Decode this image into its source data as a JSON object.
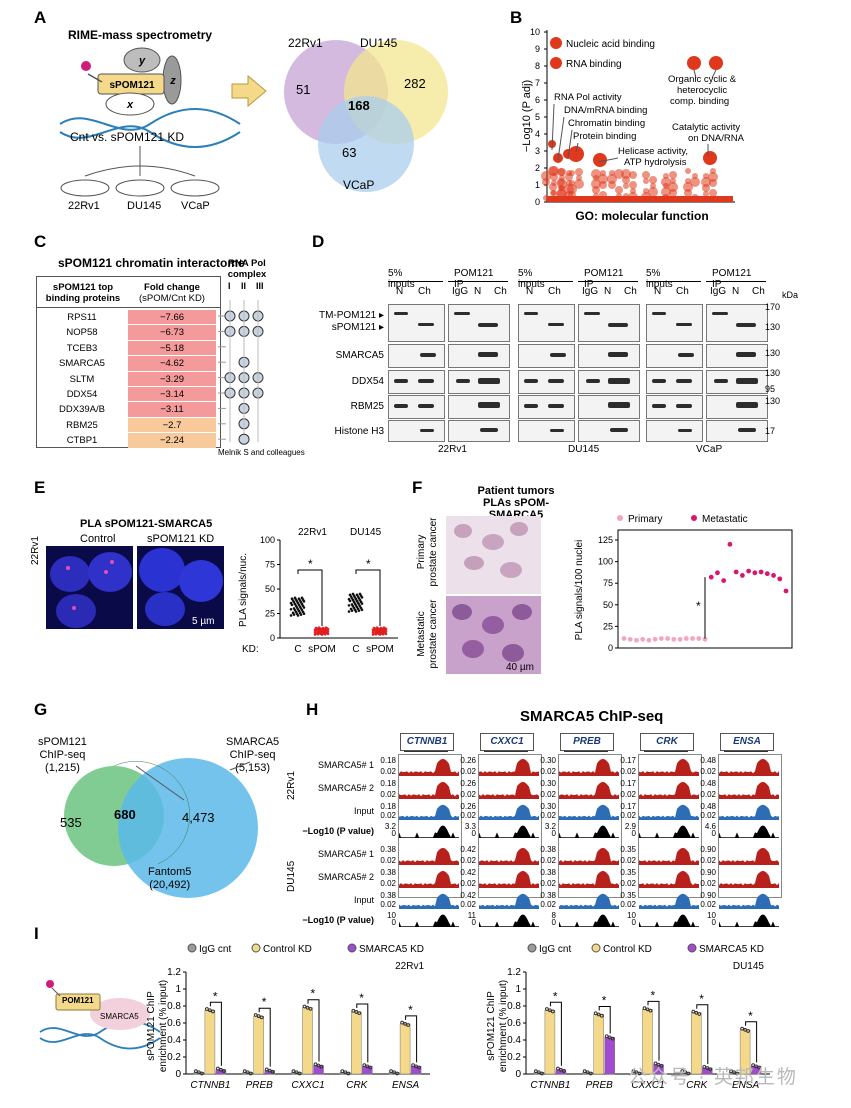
{
  "panels": {
    "A": {
      "label": "A",
      "title": "RIME-mass spectrometry",
      "protein_labels": {
        "y": "y",
        "main": "sPOM121",
        "z": "z",
        "x": "x"
      },
      "comparison": "Cnt vs. sPOM121 KD",
      "dishes": [
        "22Rv1",
        "DU145",
        "VCaP"
      ],
      "venn": {
        "sets": [
          "22Rv1",
          "DU145",
          "VCaP"
        ],
        "only_22rv1": "51",
        "only_du145": "282",
        "shared": "168",
        "only_vcap": "63"
      }
    },
    "B": {
      "label": "B",
      "ylabel": "−Log10 (P adj)",
      "xlabel": "GO: molecular function",
      "yticks": [
        "0",
        "1",
        "2",
        "3",
        "4",
        "5",
        "6",
        "7",
        "8",
        "9",
        "10"
      ],
      "legend": [
        "Nucleic acid binding",
        "RNA binding"
      ],
      "annotations": [
        "RNA Pol activity",
        "DNA/mRNA binding",
        "Chromatin binding",
        "Protein binding",
        "Helicase activity,",
        "ATP hydrolysis",
        "Organic cyclic &",
        "heterocyclic",
        "comp. binding",
        "Catalytic activity",
        "on DNA/RNA"
      ]
    },
    "C": {
      "label": "C",
      "title": "sPOM121 chromatin interactome",
      "col1_header": [
        "sPOM121 top",
        "binding proteins"
      ],
      "col2_header": [
        "Fold change",
        "(sPOM/Cnt KD)"
      ],
      "rnapol_header": [
        "RNA Pol",
        "complex"
      ],
      "rnapol_cols": [
        "I",
        "II",
        "III"
      ],
      "credit": "Melnik S and colleagues",
      "rows": [
        {
          "protein": "RPS11",
          "fold": "−7.66",
          "pol": [
            1,
            1,
            1
          ]
        },
        {
          "protein": "NOP58",
          "fold": "−6.73",
          "pol": [
            1,
            1,
            1
          ]
        },
        {
          "protein": "TCEB3",
          "fold": "−5.18",
          "pol": [
            0,
            0,
            0
          ]
        },
        {
          "protein": "SMARCA5",
          "fold": "−4.62",
          "pol": [
            0,
            1,
            0
          ]
        },
        {
          "protein": "SLTM",
          "fold": "−3.29",
          "pol": [
            1,
            1,
            1
          ]
        },
        {
          "protein": "DDX54",
          "fold": "−3.14",
          "pol": [
            1,
            1,
            1
          ]
        },
        {
          "protein": "DDX39A/B",
          "fold": "−3.11",
          "pol": [
            0,
            1,
            0
          ]
        },
        {
          "protein": "RBM25",
          "fold": "−2.7",
          "pol": [
            0,
            1,
            0
          ]
        },
        {
          "protein": "CTBP1",
          "fold": "−2.24",
          "pol": [
            0,
            1,
            0
          ]
        }
      ]
    },
    "D": {
      "label": "D",
      "group_headers": [
        "5% inputs",
        "POM121 IP"
      ],
      "lane_labels": [
        "N",
        "Ch",
        "IgG",
        "N",
        "Ch"
      ],
      "rows": [
        "TM-POM121 ▸",
        "sPOM121 ▸",
        "SMARCA5",
        "DDX54",
        "RBM25",
        "Histone H3"
      ],
      "kda_label": "kDa",
      "kda": [
        "170",
        "130",
        "130",
        "130",
        "95",
        "130",
        "17"
      ],
      "cells": [
        "22Rv1",
        "DU145",
        "VCaP"
      ]
    },
    "E": {
      "label": "E",
      "title": "PLA sPOM121-SMARCA5",
      "img_labels": [
        "Control",
        "sPOM121 KD"
      ],
      "side_label": "22Rv1",
      "scale": "5 µm",
      "ylabel": "PLA signals/nuc.",
      "yticks": [
        "0",
        "25",
        "50",
        "75",
        "100"
      ],
      "cells": [
        "22Rv1",
        "DU145"
      ],
      "xlabels": [
        "C",
        "sPOM",
        "C",
        "sPOM"
      ],
      "kd_label": "KD:",
      "star": "*"
    },
    "F": {
      "label": "F",
      "title": [
        "Patient tumors",
        "PLAs sPOM-SMARCA5"
      ],
      "img_labels": [
        [
          "Primary",
          "prostate cancer"
        ],
        [
          "Metastatic",
          "prostate cancer"
        ]
      ],
      "scale": "40 µm",
      "ylabel": "PLA signals/100 nuclei",
      "yticks": [
        "0",
        "25",
        "50",
        "75",
        "100",
        "125"
      ],
      "legend": [
        "Primary",
        "Metastatic"
      ],
      "star": "*",
      "primary_values": [
        11,
        10,
        9,
        10,
        9,
        10,
        11,
        11,
        10,
        10,
        11,
        11,
        11,
        10
      ],
      "metastatic_values": [
        82,
        87,
        78,
        120,
        88,
        84,
        89,
        87,
        88,
        86,
        84,
        80,
        66
      ]
    },
    "G": {
      "label": "G",
      "left_set": [
        "sPOM121",
        "ChIP-seq",
        "(1,215)"
      ],
      "right_set": [
        "SMARCA5",
        "ChIP-seq",
        "(5,153)"
      ],
      "bottom_set": [
        "Fantom5",
        "(20,492)"
      ],
      "left_only": "535",
      "shared": "680",
      "right_only": "4,473"
    },
    "H": {
      "label": "H",
      "title": "SMARCA5 ChIP-seq",
      "genes": [
        "CTNNB1",
        "CXXC1",
        "PREB",
        "CRK",
        "ENSA"
      ],
      "track_labels": [
        "SMARCA5# 1",
        "SMARCA5# 2",
        "Input",
        "−Log10 (P value)"
      ],
      "cell_labels": [
        "22Rv1",
        "DU145"
      ],
      "scales_22rv1": [
        [
          "0.18",
          "0.02",
          "0.18",
          "0.02",
          "0.18",
          "0.02",
          "3.2",
          "0"
        ],
        [
          "0.26",
          "0.02",
          "0.26",
          "0.02",
          "0.26",
          "0.02",
          "3.3",
          "0"
        ],
        [
          "0.30",
          "0.02",
          "0.30",
          "0.02",
          "0.30",
          "0.02",
          "3.2",
          "0"
        ],
        [
          "0.17",
          "0.02",
          "0.17",
          "0.02",
          "0.17",
          "0.02",
          "2.9",
          "0"
        ],
        [
          "0.48",
          "0.02",
          "0.48",
          "0.02",
          "0.48",
          "0.02",
          "4.6",
          "0"
        ]
      ],
      "scales_du145": [
        [
          "0.38",
          "0.02",
          "0.38",
          "0.02",
          "0.38",
          "0.02",
          "10",
          "0"
        ],
        [
          "0.42",
          "0.02",
          "0.42",
          "0.02",
          "0.42",
          "0.02",
          "11",
          "0"
        ],
        [
          "0.38",
          "0.02",
          "0.38",
          "0.02",
          "0.38",
          "0.02",
          "8",
          "0"
        ],
        [
          "0.35",
          "0.02",
          "0.35",
          "0.02",
          "0.35",
          "0.02",
          "10",
          "0"
        ],
        [
          "0.90",
          "0.02",
          "0.90",
          "0.02",
          "0.90",
          "0.02",
          "10",
          "0"
        ]
      ]
    },
    "I": {
      "label": "I",
      "cartoon": [
        "POM121",
        "SMARCA5"
      ],
      "legend": [
        "IgG cnt",
        "Control KD",
        "SMARCA5 KD"
      ],
      "ylabel": [
        "sPOM121 ChIP",
        "enrichment (% input)"
      ],
      "yticks": [
        "0",
        "0.2",
        "0.4",
        "0.6",
        "0.8",
        "1",
        "1.2"
      ],
      "star": "*",
      "watermark": "公众号 · 英邦生物"
    }
  },
  "chart_data": [
    {
      "type": "bar",
      "title": "22Rv1",
      "categories": [
        "CTNNB1",
        "PREB",
        "CXXC1",
        "CRK",
        "ENSA"
      ],
      "ylabel": "sPOM121 ChIP enrichment (% input)",
      "ylim": [
        0,
        1.2
      ],
      "series": [
        {
          "name": "IgG cnt",
          "values": [
            0.02,
            0.02,
            0.02,
            0.02,
            0.02
          ]
        },
        {
          "name": "Control KD",
          "values": [
            0.75,
            0.68,
            0.78,
            0.73,
            0.59
          ]
        },
        {
          "name": "SMARCA5 KD",
          "values": [
            0.05,
            0.04,
            0.1,
            0.09,
            0.09
          ]
        }
      ]
    },
    {
      "type": "bar",
      "title": "DU145",
      "categories": [
        "CTNNB1",
        "PREB",
        "CXXC1",
        "CRK",
        "ENSA"
      ],
      "ylabel": "sPOM121 ChIP enrichment (% input)",
      "ylim": [
        0,
        1.2
      ],
      "series": [
        {
          "name": "IgG cnt",
          "values": [
            0.02,
            0.02,
            0.02,
            0.02,
            0.02
          ]
        },
        {
          "name": "Control KD",
          "values": [
            0.75,
            0.7,
            0.76,
            0.72,
            0.52
          ]
        },
        {
          "name": "SMARCA5 KD",
          "values": [
            0.05,
            0.43,
            0.11,
            0.07,
            0.09
          ]
        }
      ]
    },
    {
      "type": "scatter",
      "title": "",
      "ylabel": "PLA signals/100 nuclei",
      "ylim": [
        0,
        125
      ],
      "series": [
        {
          "name": "Primary",
          "values": [
            11,
            10,
            9,
            10,
            9,
            10,
            11,
            11,
            10,
            10,
            11,
            11,
            11,
            10
          ]
        },
        {
          "name": "Metastatic",
          "values": [
            82,
            87,
            78,
            120,
            88,
            84,
            89,
            87,
            88,
            86,
            84,
            80,
            66
          ]
        }
      ]
    }
  ],
  "colors": {
    "venn_purple": "#c8a9d6",
    "venn_yellow": "#f3e58f",
    "venn_blue": "#a9cdec",
    "go_red": "#e0381c",
    "fold_dark": "#f59a9a",
    "fold_light": "#f8c99b",
    "track_red": "#b8211b",
    "track_blue": "#2c6db6",
    "bar_igg": "#9a9a9a",
    "bar_ctrl": "#f4d98a",
    "bar_kd": "#a24ad0",
    "venn_green": "#79c98c",
    "venn_cyan": "#5bb8ea",
    "primary_pink": "#f3a6c2",
    "meta_pink": "#d9166e"
  }
}
